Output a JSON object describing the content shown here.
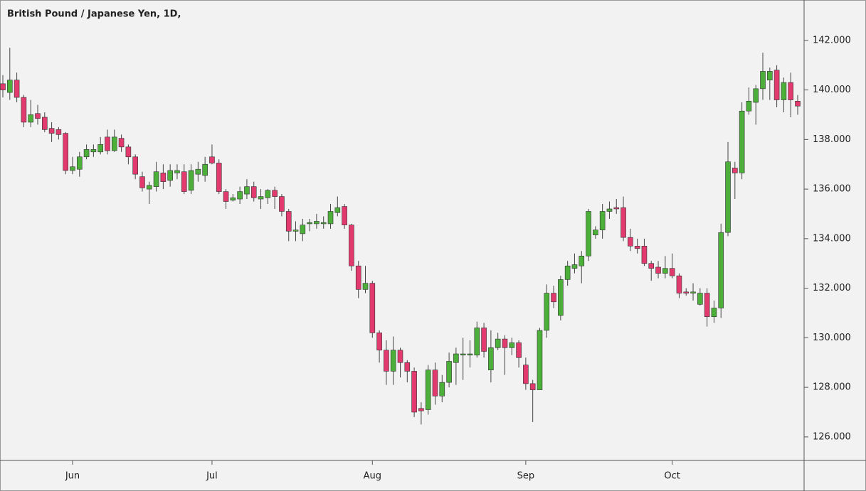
{
  "chart_data": {
    "type": "candlestick",
    "title": "British Pound / Japanese Yen, 1D,",
    "categories": [
      null,
      null,
      null,
      null,
      null,
      null,
      null,
      null,
      null,
      null,
      "Jun",
      null,
      null,
      null,
      null,
      null,
      null,
      null,
      null,
      null,
      null,
      null,
      null,
      null,
      null,
      null,
      null,
      null,
      null,
      null,
      "Jul",
      null,
      null,
      null,
      null,
      null,
      null,
      null,
      null,
      null,
      null,
      null,
      null,
      null,
      null,
      null,
      null,
      null,
      null,
      null,
      null,
      null,
      null,
      "Aug",
      null,
      null,
      null,
      null,
      null,
      null,
      null,
      null,
      null,
      null,
      null,
      null,
      null,
      null,
      null,
      null,
      null,
      null,
      null,
      null,
      null,
      "Sep",
      null,
      null,
      null,
      null,
      null,
      null,
      null,
      null,
      null,
      null,
      null,
      null,
      null,
      null,
      null,
      null,
      null,
      null,
      null,
      null,
      "Oct",
      null,
      null,
      null,
      null,
      null,
      null,
      null,
      null,
      null,
      null,
      null,
      null,
      null,
      null,
      null,
      null,
      null,
      null
    ],
    "open": [
      140.25,
      139.9,
      140.4,
      139.7,
      138.7,
      139.05,
      138.9,
      138.45,
      138.4,
      138.25,
      136.75,
      136.8,
      137.3,
      137.5,
      137.5,
      138.1,
      137.55,
      138.05,
      137.7,
      137.3,
      136.5,
      136.0,
      136.1,
      136.65,
      136.35,
      136.65,
      136.7,
      135.95,
      136.6,
      136.55,
      137.3,
      137.05,
      135.9,
      135.55,
      135.6,
      135.8,
      136.1,
      135.6,
      135.65,
      135.95,
      135.7,
      135.1,
      134.3,
      134.2,
      134.6,
      134.6,
      134.6,
      134.6,
      135.05,
      135.3,
      134.55,
      132.9,
      131.95,
      132.2,
      130.2,
      129.5,
      128.65,
      129.5,
      129.0,
      128.65,
      127.15,
      127.1,
      128.7,
      127.65,
      128.2,
      129.0,
      129.3,
      129.3,
      129.3,
      130.4,
      128.7,
      129.6,
      129.95,
      129.6,
      129.8,
      128.9,
      128.15,
      127.9,
      130.3,
      131.8,
      130.9,
      132.35,
      132.8,
      132.9,
      133.3,
      134.15,
      134.35,
      135.1,
      135.25,
      135.25,
      134.05,
      133.7,
      133.7,
      133.0,
      132.85,
      132.6,
      132.8,
      132.5,
      131.85,
      131.8,
      131.35,
      131.8,
      130.85,
      131.2,
      134.25,
      136.85,
      136.65,
      139.15,
      139.5,
      140.05,
      140.4,
      140.8,
      139.6,
      140.3,
      139.55
    ],
    "high": [
      140.6,
      141.7,
      140.7,
      139.8,
      139.6,
      139.4,
      139.1,
      138.7,
      138.5,
      138.3,
      137.3,
      137.5,
      137.8,
      137.8,
      138.1,
      138.4,
      138.4,
      138.2,
      137.8,
      137.4,
      136.7,
      136.3,
      137.1,
      137.0,
      137.0,
      137.0,
      137.0,
      137.0,
      137.1,
      137.3,
      137.8,
      137.2,
      136.0,
      135.8,
      136.1,
      136.4,
      136.3,
      136.0,
      136.0,
      136.1,
      135.8,
      135.2,
      134.7,
      134.8,
      134.8,
      135.0,
      134.9,
      135.4,
      135.7,
      135.4,
      134.6,
      133.1,
      132.9,
      132.3,
      130.3,
      129.9,
      130.05,
      129.6,
      129.1,
      128.8,
      127.4,
      128.9,
      129.0,
      128.5,
      129.4,
      129.6,
      130.0,
      129.9,
      130.65,
      130.6,
      130.3,
      130.2,
      130.1,
      130.0,
      129.9,
      129.2,
      128.3,
      130.4,
      132.15,
      132.1,
      132.5,
      133.1,
      133.4,
      133.5,
      135.2,
      134.5,
      135.4,
      135.5,
      135.6,
      135.7,
      134.4,
      134.0,
      134.0,
      133.1,
      133.1,
      133.3,
      133.4,
      132.6,
      132.0,
      132.2,
      132.0,
      132.0,
      131.5,
      134.6,
      137.9,
      137.1,
      139.5,
      140.1,
      140.2,
      141.5,
      140.9,
      141.0,
      140.5,
      140.7,
      139.8
    ],
    "low": [
      139.7,
      139.6,
      139.5,
      138.5,
      138.5,
      138.6,
      138.3,
      137.9,
      138.0,
      136.6,
      136.6,
      136.5,
      137.2,
      137.3,
      137.4,
      137.4,
      137.5,
      137.5,
      137.0,
      136.4,
      135.9,
      135.4,
      135.9,
      136.0,
      136.1,
      136.4,
      135.8,
      135.8,
      136.3,
      136.3,
      137.0,
      135.8,
      135.2,
      135.5,
      135.4,
      135.6,
      135.5,
      135.2,
      135.4,
      135.2,
      134.9,
      133.9,
      133.9,
      133.9,
      134.3,
      134.4,
      134.4,
      134.4,
      134.9,
      134.4,
      132.7,
      131.6,
      131.8,
      130.0,
      129.0,
      128.1,
      128.1,
      128.4,
      128.2,
      126.8,
      126.5,
      126.9,
      127.3,
      127.4,
      128.0,
      128.1,
      128.3,
      128.8,
      129.2,
      129.2,
      128.2,
      129.5,
      128.5,
      129.3,
      128.8,
      127.9,
      126.6,
      127.9,
      130.0,
      131.2,
      130.7,
      132.1,
      132.6,
      132.2,
      133.1,
      134.0,
      134.0,
      134.8,
      135.0,
      133.9,
      133.5,
      133.4,
      132.9,
      132.3,
      132.4,
      132.4,
      132.4,
      131.6,
      131.7,
      131.5,
      131.3,
      130.45,
      130.6,
      130.8,
      134.1,
      135.6,
      136.4,
      139.0,
      138.6,
      139.6,
      139.6,
      139.3,
      139.1,
      138.9,
      139.0
    ],
    "close": [
      140.0,
      140.4,
      139.7,
      138.7,
      139.0,
      138.85,
      138.4,
      138.25,
      138.2,
      136.75,
      136.9,
      137.3,
      137.6,
      137.6,
      137.8,
      137.55,
      138.1,
      137.7,
      137.3,
      136.6,
      136.05,
      136.15,
      136.7,
      136.3,
      136.75,
      136.75,
      135.9,
      136.75,
      136.8,
      137.0,
      137.05,
      135.9,
      135.5,
      135.65,
      135.9,
      136.1,
      135.65,
      135.7,
      135.95,
      135.7,
      135.1,
      134.3,
      134.35,
      134.55,
      134.65,
      134.7,
      134.65,
      135.1,
      135.25,
      134.55,
      132.9,
      131.95,
      132.2,
      130.2,
      129.5,
      128.65,
      129.5,
      129.0,
      128.65,
      127.0,
      127.05,
      128.7,
      127.65,
      128.2,
      129.05,
      129.35,
      129.35,
      129.35,
      130.4,
      129.45,
      129.6,
      129.95,
      129.6,
      129.8,
      129.2,
      128.15,
      127.9,
      130.3,
      131.8,
      131.45,
      132.35,
      132.9,
      132.95,
      133.3,
      135.1,
      134.35,
      135.1,
      135.2,
      135.2,
      134.05,
      133.7,
      133.6,
      133.0,
      132.8,
      132.6,
      132.8,
      132.5,
      131.8,
      131.8,
      131.85,
      131.8,
      130.85,
      131.2,
      134.25,
      137.1,
      136.65,
      139.15,
      139.55,
      140.05,
      140.75,
      140.75,
      139.6,
      140.3,
      139.6,
      139.35
    ],
    "up_color": "#4caf3a",
    "down_color": "#e23a6e",
    "ylim": [
      125.05,
      143.63
    ],
    "yticks": [
      {
        "value": 126,
        "label": "126.000"
      },
      {
        "value": 128,
        "label": "128.000"
      },
      {
        "value": 130,
        "label": "130.000"
      },
      {
        "value": 132,
        "label": "132.000"
      },
      {
        "value": 134,
        "label": "134.000"
      },
      {
        "value": 136,
        "label": "136.000"
      },
      {
        "value": 138,
        "label": "138.000"
      },
      {
        "value": 140,
        "label": "140.000"
      },
      {
        "value": 142,
        "label": "142.000"
      }
    ],
    "grid": false
  }
}
